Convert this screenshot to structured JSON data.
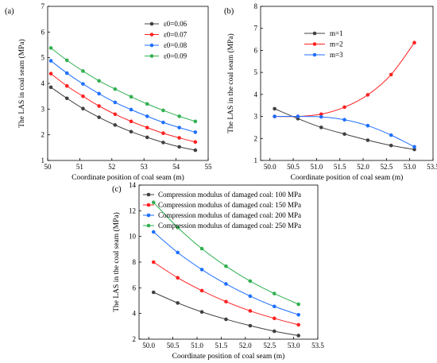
{
  "chart_data": [
    {
      "panel": "(a)",
      "type": "line",
      "xlabel": "Coordinate position of coal seam (m)",
      "ylabel": "The LAS in coal seam (MPa)",
      "xlim": [
        50,
        55
      ],
      "ylim": [
        1,
        7
      ],
      "xticks": [
        "50",
        "51",
        "52",
        "53",
        "54",
        "55"
      ],
      "yticks": [
        "1",
        "2",
        "3",
        "4",
        "5",
        "6",
        "7"
      ],
      "legend_position": "top-right",
      "x": [
        50.1,
        50.6,
        51.1,
        51.6,
        52.1,
        52.6,
        53.1,
        53.6,
        54.1,
        54.6
      ],
      "series": [
        {
          "name": "ε0=0.06",
          "color": "#404040",
          "values": [
            3.85,
            3.42,
            3.02,
            2.68,
            2.38,
            2.12,
            1.9,
            1.7,
            1.53,
            1.4
          ]
        },
        {
          "name": "ε0=0.07",
          "color": "#ff2020",
          "values": [
            4.38,
            3.9,
            3.5,
            3.12,
            2.8,
            2.52,
            2.28,
            2.06,
            1.88,
            1.72
          ]
        },
        {
          "name": "ε0=0.08",
          "color": "#1e6fff",
          "values": [
            4.88,
            4.4,
            3.98,
            3.6,
            3.26,
            2.98,
            2.72,
            2.48,
            2.28,
            2.1
          ]
        },
        {
          "name": "ε0=0.09",
          "color": "#30b050",
          "values": [
            5.38,
            4.9,
            4.48,
            4.1,
            3.78,
            3.48,
            3.2,
            2.95,
            2.72,
            2.52
          ]
        }
      ]
    },
    {
      "panel": "(b)",
      "type": "line",
      "xlabel": "Coordinate position of coal seam (m)",
      "ylabel": "The LAS in the coal seam (MPa)",
      "xlim": [
        49.8,
        53.5
      ],
      "ylim": [
        1,
        8
      ],
      "xticks": [
        "50.0",
        "50.5",
        "51.0",
        "51.5",
        "52.0",
        "52.5",
        "53.0",
        "53.5"
      ],
      "yticks": [
        "1",
        "2",
        "3",
        "4",
        "5",
        "6",
        "7",
        "8"
      ],
      "legend_position": "top-left",
      "x": [
        50.1,
        50.6,
        51.1,
        51.6,
        52.1,
        52.6,
        53.1
      ],
      "series": [
        {
          "name": "m=1",
          "color": "#404040",
          "values": [
            3.35,
            2.9,
            2.5,
            2.2,
            1.92,
            1.68,
            1.5
          ]
        },
        {
          "name": "m=2",
          "color": "#ff2020",
          "values": [
            3.0,
            3.0,
            3.1,
            3.42,
            3.98,
            4.9,
            6.35
          ]
        },
        {
          "name": "m=3",
          "color": "#1e6fff",
          "values": [
            3.0,
            3.0,
            2.98,
            2.85,
            2.58,
            2.15,
            1.62
          ]
        }
      ]
    },
    {
      "panel": "(c)",
      "type": "line",
      "xlabel": "Coordinate position of coal seam (m)",
      "ylabel": "The LAS in the coal seam (MPa)",
      "xlim": [
        49.8,
        53.5
      ],
      "ylim": [
        2,
        14
      ],
      "xticks": [
        "50.0",
        "50.5",
        "51.0",
        "51.5",
        "52.0",
        "52.5",
        "53.0",
        "53.5"
      ],
      "yticks": [
        "2",
        "4",
        "6",
        "8",
        "10",
        "12",
        "14"
      ],
      "legend_position": "top-left",
      "x": [
        50.1,
        50.6,
        51.1,
        51.6,
        52.1,
        52.6,
        53.1
      ],
      "series": [
        {
          "name": "Compression modulus of damaged coal: 100 MPa",
          "color": "#404040",
          "values": [
            5.65,
            4.82,
            4.12,
            3.55,
            3.05,
            2.62,
            2.28
          ]
        },
        {
          "name": "Compression modulus of damaged coal: 150 MPa",
          "color": "#ff2020",
          "values": [
            8.0,
            6.78,
            5.78,
            4.92,
            4.2,
            3.62,
            3.12
          ]
        },
        {
          "name": "Compression modulus of damaged coal: 200 MPa",
          "color": "#1e6fff",
          "values": [
            10.35,
            8.75,
            7.42,
            6.3,
            5.35,
            4.55,
            3.9
          ]
        },
        {
          "name": "Compression modulus of damaged coal: 250 MPa",
          "color": "#30b050",
          "values": [
            12.65,
            10.7,
            9.05,
            7.68,
            6.52,
            5.55,
            4.72
          ]
        }
      ]
    }
  ]
}
